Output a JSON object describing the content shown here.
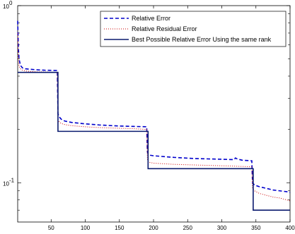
{
  "chart_data": {
    "type": "line",
    "title": "",
    "xlabel": "",
    "ylabel": "",
    "xlim": [
      1,
      400
    ],
    "ylim": [
      0.06,
      1
    ],
    "yscale": "log",
    "grid": false,
    "legend_position": "top-right",
    "x_ticks": [
      50,
      100,
      150,
      200,
      250,
      300,
      350,
      400
    ],
    "x_tick_labels": [
      "50",
      "100",
      "150",
      "200",
      "250",
      "300",
      "350",
      "400"
    ],
    "y_ticks": [
      1,
      0.1
    ],
    "y_tick_labels": [
      {
        "base": "10",
        "exp": "0"
      },
      {
        "base": "10",
        "exp": "-1"
      }
    ],
    "series": [
      {
        "name": "Relative Error",
        "style": "dashed",
        "color": "#0000cc",
        "x": [
          1,
          2,
          3,
          5,
          8,
          12,
          20,
          30,
          40,
          50,
          59,
          60,
          62,
          65,
          70,
          80,
          100,
          120,
          150,
          170,
          190,
          191,
          192,
          195,
          200,
          230,
          260,
          290,
          318,
          320,
          323,
          330,
          344,
          345,
          348,
          355,
          365,
          375,
          385,
          395,
          400
        ],
        "y": [
          0.82,
          0.58,
          0.5,
          0.46,
          0.445,
          0.44,
          0.437,
          0.434,
          0.432,
          0.431,
          0.43,
          0.245,
          0.235,
          0.228,
          0.223,
          0.219,
          0.215,
          0.212,
          0.209,
          0.208,
          0.207,
          0.15,
          0.145,
          0.143,
          0.142,
          0.139,
          0.137,
          0.136,
          0.135,
          0.138,
          0.136,
          0.134,
          0.133,
          0.1,
          0.097,
          0.095,
          0.093,
          0.091,
          0.09,
          0.089,
          0.088
        ]
      },
      {
        "name": "Relative Residual Error",
        "style": "dotted",
        "color": "#cc0000",
        "x": [
          1,
          2,
          3,
          5,
          8,
          12,
          20,
          30,
          40,
          50,
          59,
          60,
          62,
          65,
          70,
          80,
          100,
          120,
          150,
          170,
          190,
          191,
          192,
          195,
          200,
          230,
          260,
          290,
          320,
          344,
          345,
          348,
          355,
          365,
          375,
          385,
          395,
          400
        ],
        "y": [
          0.7,
          0.5,
          0.455,
          0.44,
          0.432,
          0.428,
          0.425,
          0.423,
          0.422,
          0.421,
          0.42,
          0.225,
          0.22,
          0.216,
          0.213,
          0.21,
          0.207,
          0.205,
          0.203,
          0.202,
          0.2,
          0.136,
          0.132,
          0.13,
          0.129,
          0.127,
          0.126,
          0.125,
          0.124,
          0.123,
          0.093,
          0.09,
          0.087,
          0.085,
          0.083,
          0.082,
          0.08,
          0.079
        ]
      },
      {
        "name": "Best Possible Relative Error Using the same rank",
        "style": "solid",
        "color": "#0a1a6e",
        "x": [
          1,
          60,
          60,
          192,
          192,
          346,
          346,
          400
        ],
        "y": [
          0.42,
          0.42,
          0.195,
          0.195,
          0.12,
          0.12,
          0.07,
          0.07
        ]
      }
    ]
  }
}
